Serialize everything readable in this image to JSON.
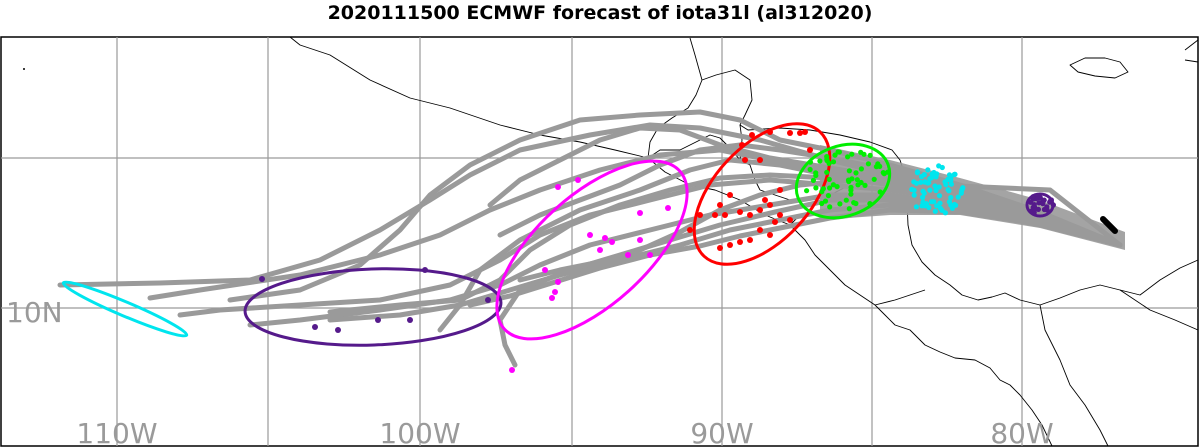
{
  "title": "2020111500 ECMWF forecast of iota31l (al312020)",
  "axes": {
    "lon_labels": [
      "110W",
      "100W",
      "90W",
      "80W"
    ],
    "lat_labels": [
      "10N"
    ]
  },
  "colors": {
    "tracks": "#9a9a9a",
    "coast": "#000000",
    "grid": "#9a9a9a",
    "stage_0": "#000000",
    "stage_1": "#551a8b",
    "stage_2": "#00e5ee",
    "stage_3": "#00ee00",
    "stage_4": "#ff0000",
    "stage_5": "#ff00ff",
    "stage_6": "#551a8b",
    "stage_7": "#00e5ee"
  }
}
